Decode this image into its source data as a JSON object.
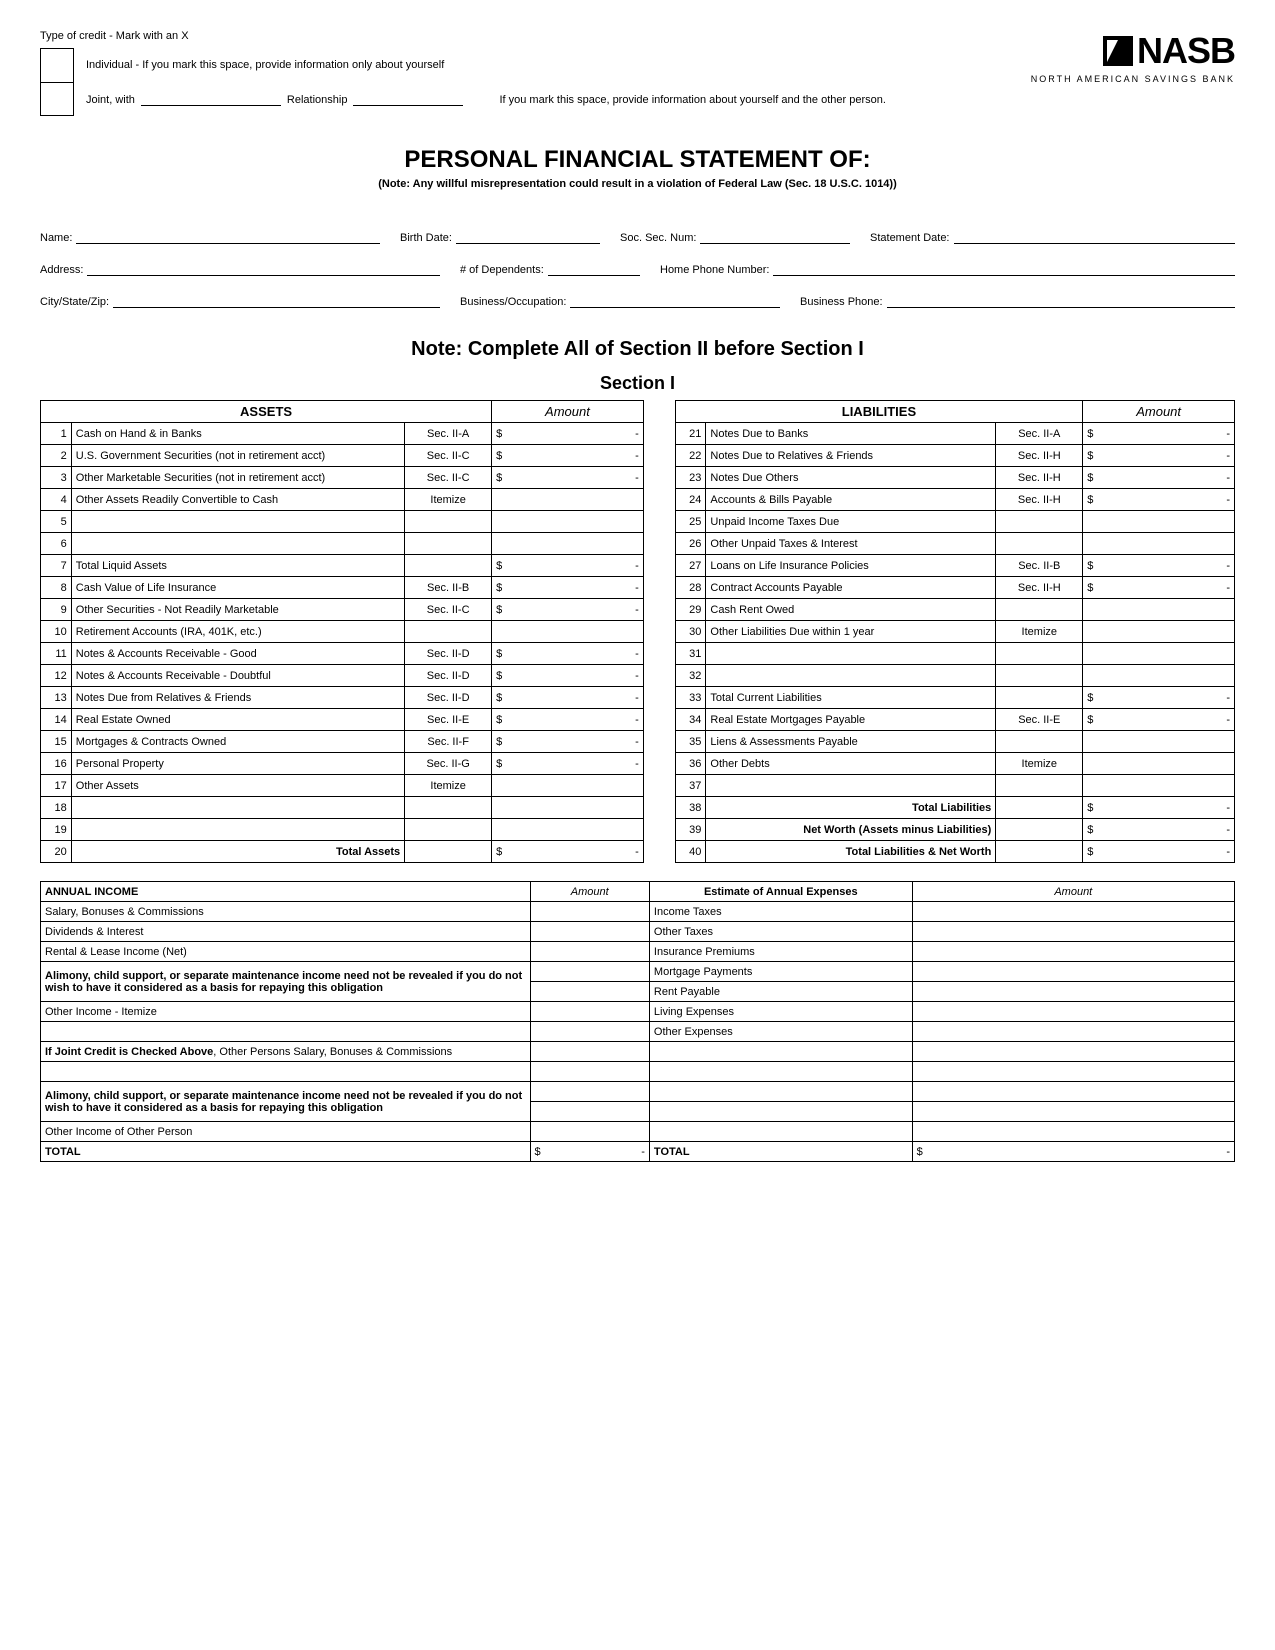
{
  "credit": {
    "header": "Type of credit - Mark with an X",
    "individual": "Individual - If you mark this space, provide information only about yourself",
    "joint": "Joint, with",
    "relationship": "Relationship",
    "joint_note": "If you mark this space, provide information about yourself and the other person."
  },
  "logo": {
    "text": "NASB",
    "sub": "NORTH AMERICAN SAVINGS BANK"
  },
  "title": {
    "main": "PERSONAL FINANCIAL STATEMENT OF:",
    "note": "(Note: Any willful misrepresentation could result in a violation of Federal Law (Sec. 18 U.S.C. 1014))"
  },
  "fields": {
    "name": "Name:",
    "birth": "Birth Date:",
    "ssn": "Soc. Sec. Num:",
    "stmt": "Statement Date:",
    "address": "Address:",
    "dependents": "# of Dependents:",
    "home_phone": "Home Phone Number:",
    "city": "City/State/Zip:",
    "occupation": "Business/Occupation:",
    "bus_phone": "Business Phone:"
  },
  "note2": {
    "line1": "Note:  Complete All of Section II before Section I",
    "line2": "Section I"
  },
  "headers": {
    "assets": "ASSETS",
    "amount": "Amount",
    "liabilities": "LIABILITIES"
  },
  "assets": [
    {
      "n": "1",
      "label": "Cash on Hand & in Banks",
      "ref": "Sec. II-A",
      "d": "$",
      "a": "-"
    },
    {
      "n": "2",
      "label": "U.S. Government Securities (not in retirement acct)",
      "ref": "Sec. II-C",
      "d": "$",
      "a": "-"
    },
    {
      "n": "3",
      "label": "Other Marketable Securities (not in retirement acct)",
      "ref": "Sec. II-C",
      "d": "$",
      "a": "-"
    },
    {
      "n": "4",
      "label": "Other Assets Readily Convertible to Cash",
      "ref": "Itemize",
      "d": "",
      "a": ""
    },
    {
      "n": "5",
      "label": "",
      "ref": "",
      "d": "",
      "a": ""
    },
    {
      "n": "6",
      "label": "",
      "ref": "",
      "d": "",
      "a": ""
    },
    {
      "n": "7",
      "label": "Total Liquid Assets",
      "ref": "",
      "d": "$",
      "a": "-"
    },
    {
      "n": "8",
      "label": "Cash Value of Life Insurance",
      "ref": "Sec. II-B",
      "d": "$",
      "a": "-"
    },
    {
      "n": "9",
      "label": "Other Securities - Not Readily Marketable",
      "ref": "Sec. II-C",
      "d": "$",
      "a": "-"
    },
    {
      "n": "10",
      "label": "Retirement Accounts (IRA, 401K, etc.)",
      "ref": "",
      "d": "",
      "a": ""
    },
    {
      "n": "11",
      "label": "Notes & Accounts Receivable - Good",
      "ref": "Sec. II-D",
      "d": "$",
      "a": "-"
    },
    {
      "n": "12",
      "label": "Notes & Accounts Receivable - Doubtful",
      "ref": "Sec. II-D",
      "d": "$",
      "a": "-"
    },
    {
      "n": "13",
      "label": "Notes Due from Relatives & Friends",
      "ref": "Sec. II-D",
      "d": "$",
      "a": "-"
    },
    {
      "n": "14",
      "label": "Real Estate Owned",
      "ref": "Sec. II-E",
      "d": "$",
      "a": "-"
    },
    {
      "n": "15",
      "label": "Mortgages & Contracts Owned",
      "ref": "Sec. II-F",
      "d": "$",
      "a": "-"
    },
    {
      "n": "16",
      "label": "Personal Property",
      "ref": "Sec. II-G",
      "d": "$",
      "a": "-"
    },
    {
      "n": "17",
      "label": "Other Assets",
      "ref": "Itemize",
      "d": "",
      "a": ""
    },
    {
      "n": "18",
      "label": "",
      "ref": "",
      "d": "",
      "a": ""
    },
    {
      "n": "19",
      "label": "",
      "ref": "",
      "d": "",
      "a": ""
    },
    {
      "n": "20",
      "label": "Total Assets",
      "ref": "",
      "d": "$",
      "a": "-",
      "bold": true,
      "right": true
    }
  ],
  "liabilities": [
    {
      "n": "21",
      "label": "Notes Due to Banks",
      "ref": "Sec. II-A",
      "d": "$",
      "a": "-"
    },
    {
      "n": "22",
      "label": "Notes Due to Relatives & Friends",
      "ref": "Sec. II-H",
      "d": "$",
      "a": "-"
    },
    {
      "n": "23",
      "label": "Notes Due Others",
      "ref": "Sec. II-H",
      "d": "$",
      "a": "-"
    },
    {
      "n": "24",
      "label": "Accounts & Bills Payable",
      "ref": "Sec. II-H",
      "d": "$",
      "a": "-"
    },
    {
      "n": "25",
      "label": "Unpaid Income Taxes Due",
      "ref": "",
      "d": "",
      "a": ""
    },
    {
      "n": "26",
      "label": "Other Unpaid Taxes & Interest",
      "ref": "",
      "d": "",
      "a": ""
    },
    {
      "n": "27",
      "label": "Loans on Life Insurance Policies",
      "ref": "Sec. II-B",
      "d": "$",
      "a": "-"
    },
    {
      "n": "28",
      "label": "Contract Accounts Payable",
      "ref": "Sec. II-H",
      "d": "$",
      "a": "-"
    },
    {
      "n": "29",
      "label": "Cash Rent Owed",
      "ref": "",
      "d": "",
      "a": ""
    },
    {
      "n": "30",
      "label": "Other Liabilities Due within 1 year",
      "ref": "Itemize",
      "d": "",
      "a": ""
    },
    {
      "n": "31",
      "label": "",
      "ref": "",
      "d": "",
      "a": ""
    },
    {
      "n": "32",
      "label": "",
      "ref": "",
      "d": "",
      "a": ""
    },
    {
      "n": "33",
      "label": "Total Current Liabilities",
      "ref": "",
      "d": "$",
      "a": "-"
    },
    {
      "n": "34",
      "label": "Real Estate Mortgages Payable",
      "ref": "Sec. II-E",
      "d": "$",
      "a": "-"
    },
    {
      "n": "35",
      "label": "Liens & Assessments Payable",
      "ref": "",
      "d": "",
      "a": ""
    },
    {
      "n": "36",
      "label": "Other Debts",
      "ref": "Itemize",
      "d": "",
      "a": ""
    },
    {
      "n": "37",
      "label": "",
      "ref": "",
      "d": "",
      "a": ""
    },
    {
      "n": "38",
      "label": "Total Liabilities",
      "ref": "",
      "d": "$",
      "a": "-",
      "bold": true,
      "right": true
    },
    {
      "n": "39",
      "label": "Net Worth (Assets minus Liabilities)",
      "ref": "",
      "d": "$",
      "a": "-",
      "bold": true,
      "right": true
    },
    {
      "n": "40",
      "label": "Total Liabilities & Net Worth",
      "ref": "",
      "d": "$",
      "a": "-",
      "bold": true,
      "right": true
    }
  ],
  "income": {
    "hdr1": "ANNUAL INCOME",
    "hdr_amt": "Amount",
    "hdr2": "Estimate of Annual Expenses",
    "left": [
      "Salary, Bonuses & Commissions",
      "Dividends & Interest",
      "Rental & Lease Income (Net)"
    ],
    "alimony": "Alimony, child support, or separate maintenance income need not be revealed if you do not wish to have it considered as a basis for repaying this obligation",
    "other_income": "Other Income - Itemize",
    "joint_stmt": "If Joint Credit is Checked Above, Other Persons Salary, Bonuses & Commissions",
    "other_person": "Other Income of Other Person",
    "total": "TOTAL",
    "right": [
      "Income Taxes",
      "Other Taxes",
      "Insurance Premiums",
      "Mortgage Payments",
      "Rent Payable",
      "Living Expenses",
      "Other Expenses"
    ],
    "total_d": "$",
    "total_a": "-"
  }
}
